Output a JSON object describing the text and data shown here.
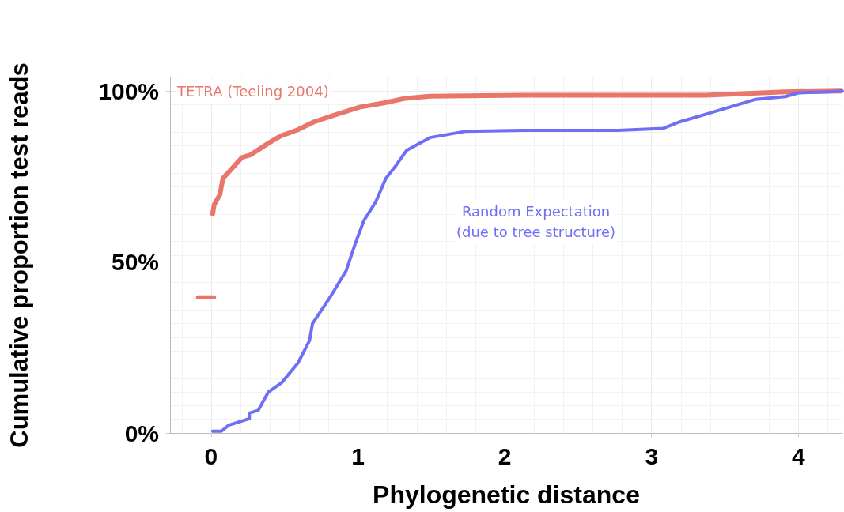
{
  "chart_data": {
    "type": "line",
    "xlabel": "Phylogenetic distance",
    "ylabel": "Cumulative proportion test reads",
    "xlim": [
      -0.28,
      4.3
    ],
    "xticks": [
      0,
      1,
      2,
      3,
      4
    ],
    "ylim": [
      0,
      104
    ],
    "yticks": [
      {
        "value": 0,
        "label": "0%"
      },
      {
        "value": 50,
        "label": "50%"
      },
      {
        "value": 100,
        "label": "100%"
      }
    ],
    "grid": true,
    "legend": false,
    "marker": "none",
    "line_style": "solid",
    "series": [
      {
        "name": "TETRA (Teeling 2004)",
        "color": "#e8766a",
        "x": [
          0.01,
          0.02,
          0.06,
          0.08,
          0.13,
          0.21,
          0.27,
          0.38,
          0.47,
          0.59,
          0.7,
          0.84,
          1.01,
          1.17,
          1.31,
          1.49,
          2.12,
          3.37,
          3.91,
          4.29
        ],
        "values": [
          64.1,
          66.7,
          69.8,
          74.5,
          76.8,
          80.6,
          81.4,
          84.5,
          86.8,
          88.7,
          91.0,
          93.0,
          95.3,
          96.5,
          97.8,
          98.5,
          98.8,
          98.8,
          99.8,
          100
        ]
      },
      {
        "color": "#e8766a",
        "x": [
          -0.09,
          0.02
        ],
        "values": [
          39.7,
          39.7
        ]
      },
      {
        "name": "Random Expectation\n(due to tree structure)",
        "color": "#6f6ff5",
        "x": [
          0.01,
          0.07,
          0.12,
          0.26,
          0.26,
          0.32,
          0.39,
          0.48,
          0.59,
          0.67,
          0.69,
          0.81,
          0.92,
          0.98,
          1.04,
          1.12,
          1.19,
          1.26,
          1.33,
          1.49,
          1.73,
          2.12,
          2.77,
          3.08,
          3.19,
          3.35,
          3.53,
          3.71,
          3.91,
          4.0,
          4.2,
          4.3
        ],
        "values": [
          0.5,
          0.5,
          2.3,
          4.2,
          5.8,
          6.6,
          12.0,
          14.7,
          20.4,
          27.0,
          32.0,
          39.7,
          47.5,
          55.2,
          62.1,
          67.5,
          74.5,
          78.3,
          82.6,
          86.4,
          88.2,
          88.5,
          88.5,
          89.1,
          91.0,
          93.0,
          95.3,
          97.6,
          98.4,
          99.5,
          99.8,
          100
        ]
      }
    ]
  }
}
